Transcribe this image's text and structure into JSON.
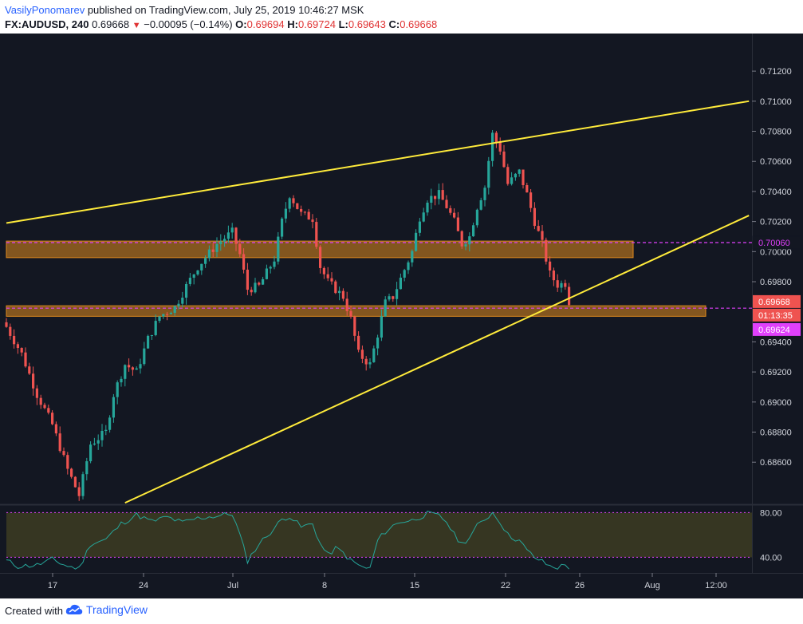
{
  "header": {
    "author": "VasilyPonomarev",
    "published_text": "published on TradingView.com, July 25, 2019 10:46:27 MSK",
    "symbol": "FX:AUDUSD, 240",
    "last": "0.69668",
    "change": "−0.00095 (−0.14%)",
    "o_label": "O:",
    "o_value": "0.69694",
    "h_label": "H:",
    "h_value": "0.69724",
    "l_label": "L:",
    "l_value": "0.69643",
    "c_label": "C:",
    "c_value": "0.69668"
  },
  "footer": {
    "created_with": "Created with",
    "brand": "TradingView"
  },
  "colors": {
    "background": "#131722",
    "up": "#26a69a",
    "down": "#ef5350",
    "trendline": "#ffeb3b",
    "zone": "#e08a1e",
    "magenta": "#e040fb",
    "rsi_line": "#26a69a",
    "rsi_band": "#3b3a22"
  },
  "chart_data": {
    "type": "candlestick",
    "symbol": "FX:AUDUSD",
    "interval": "240",
    "y_ticks": [
      "0.71200",
      "0.71000",
      "0.70800",
      "0.70600",
      "0.70400",
      "0.70200",
      "0.70000",
      "0.69800",
      "0.69400",
      "0.69200",
      "0.69000",
      "0.68800",
      "0.68600"
    ],
    "y_range": [
      0.6832,
      0.7145
    ],
    "x_ticks": [
      "17",
      "24",
      "Jul",
      "8",
      "15",
      "22",
      "26",
      "Aug",
      "12:00"
    ],
    "price_labels": [
      {
        "text": "0.70060",
        "value": 0.7006,
        "style": "magenta"
      },
      {
        "text": "0.69668",
        "value": 0.69668,
        "style": "down"
      },
      {
        "text": "01:13:35",
        "value": 0.69599,
        "style": "countdown"
      },
      {
        "text": "0.69624",
        "value": 0.69624,
        "style": "magenta_fill"
      }
    ],
    "zones": [
      {
        "from": 0.6996,
        "to": 0.7007
      },
      {
        "from": 0.6957,
        "to": 0.6964
      }
    ],
    "dashed_levels": [
      0.7006,
      0.69624
    ],
    "trendlines": [
      {
        "from": {
          "bar": 0,
          "price": 0.7019
        },
        "to": {
          "bar": 194,
          "price": 0.71
        }
      },
      {
        "from": {
          "bar": 31,
          "price": 0.6833
        },
        "to": {
          "bar": 194,
          "price": 0.7024
        }
      }
    ],
    "anchors": [
      {
        "bar": 0,
        "price": 0.695
      },
      {
        "bar": 4,
        "price": 0.6932
      },
      {
        "bar": 8,
        "price": 0.6905
      },
      {
        "bar": 12,
        "price": 0.6885
      },
      {
        "bar": 16,
        "price": 0.6855
      },
      {
        "bar": 19,
        "price": 0.6838
      },
      {
        "bar": 22,
        "price": 0.6872
      },
      {
        "bar": 26,
        "price": 0.688
      },
      {
        "bar": 28,
        "price": 0.6905
      },
      {
        "bar": 31,
        "price": 0.6925
      },
      {
        "bar": 34,
        "price": 0.692
      },
      {
        "bar": 37,
        "price": 0.6942
      },
      {
        "bar": 40,
        "price": 0.6957
      },
      {
        "bar": 44,
        "price": 0.6963
      },
      {
        "bar": 47,
        "price": 0.6977
      },
      {
        "bar": 50,
        "price": 0.699
      },
      {
        "bar": 55,
        "price": 0.7005
      },
      {
        "bar": 59,
        "price": 0.7013
      },
      {
        "bar": 61,
        "price": 0.6998
      },
      {
        "bar": 63,
        "price": 0.6975
      },
      {
        "bar": 66,
        "price": 0.6977
      },
      {
        "bar": 70,
        "price": 0.6995
      },
      {
        "bar": 72,
        "price": 0.702
      },
      {
        "bar": 74,
        "price": 0.7038
      },
      {
        "bar": 77,
        "price": 0.7025
      },
      {
        "bar": 80,
        "price": 0.7022
      },
      {
        "bar": 82,
        "price": 0.699
      },
      {
        "bar": 84,
        "price": 0.698
      },
      {
        "bar": 86,
        "price": 0.6975
      },
      {
        "bar": 88,
        "price": 0.697
      },
      {
        "bar": 90,
        "price": 0.6955
      },
      {
        "bar": 92,
        "price": 0.6932
      },
      {
        "bar": 95,
        "price": 0.6925
      },
      {
        "bar": 97,
        "price": 0.6945
      },
      {
        "bar": 99,
        "price": 0.6966
      },
      {
        "bar": 101,
        "price": 0.697
      },
      {
        "bar": 103,
        "price": 0.6982
      },
      {
        "bar": 106,
        "price": 0.7
      },
      {
        "bar": 108,
        "price": 0.7023
      },
      {
        "bar": 110,
        "price": 0.7035
      },
      {
        "bar": 113,
        "price": 0.7038
      },
      {
        "bar": 115,
        "price": 0.703
      },
      {
        "bar": 117,
        "price": 0.702
      },
      {
        "bar": 119,
        "price": 0.7005
      },
      {
        "bar": 121,
        "price": 0.701
      },
      {
        "bar": 123,
        "price": 0.703
      },
      {
        "bar": 125,
        "price": 0.7043
      },
      {
        "bar": 127,
        "price": 0.7078
      },
      {
        "bar": 129,
        "price": 0.7068
      },
      {
        "bar": 131,
        "price": 0.7045
      },
      {
        "bar": 134,
        "price": 0.7053
      },
      {
        "bar": 136,
        "price": 0.7038
      },
      {
        "bar": 138,
        "price": 0.702
      },
      {
        "bar": 140,
        "price": 0.7005
      },
      {
        "bar": 142,
        "price": 0.6985
      },
      {
        "bar": 144,
        "price": 0.6978
      },
      {
        "bar": 146,
        "price": 0.6979
      },
      {
        "bar": 147,
        "price": 0.6967
      }
    ],
    "rsi": {
      "levels": [
        80,
        40
      ],
      "y_ticks": [
        "80.00",
        "40.00"
      ],
      "range": [
        26,
        86
      ],
      "anchors": [
        {
          "bar": 0,
          "value": 37
        },
        {
          "bar": 3,
          "value": 32
        },
        {
          "bar": 8,
          "value": 33
        },
        {
          "bar": 12,
          "value": 38
        },
        {
          "bar": 16,
          "value": 32
        },
        {
          "bar": 19,
          "value": 30
        },
        {
          "bar": 22,
          "value": 52
        },
        {
          "bar": 26,
          "value": 56
        },
        {
          "bar": 30,
          "value": 70
        },
        {
          "bar": 34,
          "value": 78
        },
        {
          "bar": 38,
          "value": 72
        },
        {
          "bar": 42,
          "value": 76
        },
        {
          "bar": 46,
          "value": 71
        },
        {
          "bar": 50,
          "value": 75
        },
        {
          "bar": 55,
          "value": 77
        },
        {
          "bar": 59,
          "value": 79
        },
        {
          "bar": 61,
          "value": 60
        },
        {
          "bar": 63,
          "value": 37
        },
        {
          "bar": 66,
          "value": 52
        },
        {
          "bar": 70,
          "value": 66
        },
        {
          "bar": 72,
          "value": 74
        },
        {
          "bar": 74,
          "value": 77
        },
        {
          "bar": 77,
          "value": 67
        },
        {
          "bar": 80,
          "value": 70
        },
        {
          "bar": 82,
          "value": 52
        },
        {
          "bar": 84,
          "value": 42
        },
        {
          "bar": 86,
          "value": 48
        },
        {
          "bar": 88,
          "value": 44
        },
        {
          "bar": 90,
          "value": 37
        },
        {
          "bar": 93,
          "value": 31
        },
        {
          "bar": 95,
          "value": 30
        },
        {
          "bar": 97,
          "value": 55
        },
        {
          "bar": 99,
          "value": 63
        },
        {
          "bar": 101,
          "value": 68
        },
        {
          "bar": 103,
          "value": 72
        },
        {
          "bar": 106,
          "value": 73
        },
        {
          "bar": 108,
          "value": 76
        },
        {
          "bar": 110,
          "value": 79
        },
        {
          "bar": 113,
          "value": 77
        },
        {
          "bar": 115,
          "value": 72
        },
        {
          "bar": 117,
          "value": 60
        },
        {
          "bar": 119,
          "value": 52
        },
        {
          "bar": 121,
          "value": 58
        },
        {
          "bar": 123,
          "value": 68
        },
        {
          "bar": 125,
          "value": 74
        },
        {
          "bar": 127,
          "value": 80
        },
        {
          "bar": 129,
          "value": 72
        },
        {
          "bar": 131,
          "value": 60
        },
        {
          "bar": 134,
          "value": 55
        },
        {
          "bar": 136,
          "value": 46
        },
        {
          "bar": 138,
          "value": 40
        },
        {
          "bar": 140,
          "value": 36
        },
        {
          "bar": 142,
          "value": 32
        },
        {
          "bar": 144,
          "value": 31
        },
        {
          "bar": 146,
          "value": 33
        },
        {
          "bar": 147,
          "value": 31
        }
      ]
    }
  }
}
